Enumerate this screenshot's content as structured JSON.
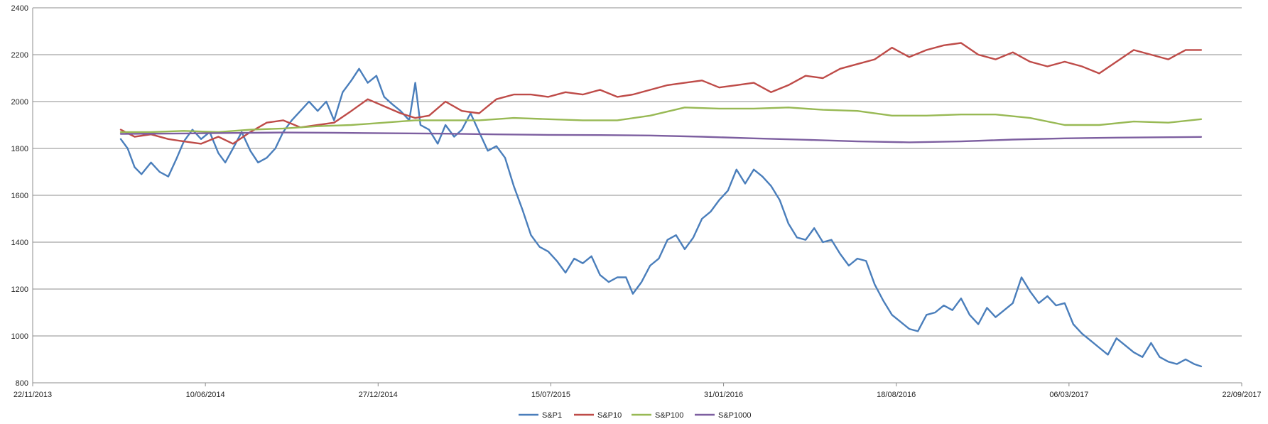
{
  "chart_data": {
    "type": "line",
    "title": "",
    "xlabel": "",
    "ylabel": "",
    "x_axis": {
      "type": "date",
      "range": [
        "2013-11-22",
        "2017-09-22"
      ],
      "ticks": [
        {
          "date": "2013-11-22",
          "label": "22/11/2013"
        },
        {
          "date": "2014-06-10",
          "label": "10/06/2014"
        },
        {
          "date": "2014-12-27",
          "label": "27/12/2014"
        },
        {
          "date": "2015-07-15",
          "label": "15/07/2015"
        },
        {
          "date": "2016-01-31",
          "label": "31/01/2016"
        },
        {
          "date": "2016-08-18",
          "label": "18/08/2016"
        },
        {
          "date": "2017-03-06",
          "label": "06/03/2017"
        },
        {
          "date": "2017-09-22",
          "label": "22/09/2017"
        }
      ]
    },
    "y_axis": {
      "range": [
        800,
        2400
      ],
      "ticks": [
        800,
        1000,
        1200,
        1400,
        1600,
        1800,
        2000,
        2200,
        2400
      ]
    },
    "grid": "horizontal",
    "legend_position": "bottom",
    "series": [
      {
        "name": "S&P1",
        "color": "#4a7ebb",
        "points": [
          [
            "2014-03-04",
            1840
          ],
          [
            "2014-03-12",
            1800
          ],
          [
            "2014-03-20",
            1720
          ],
          [
            "2014-03-28",
            1690
          ],
          [
            "2014-04-08",
            1740
          ],
          [
            "2014-04-18",
            1700
          ],
          [
            "2014-04-28",
            1680
          ],
          [
            "2014-05-08",
            1760
          ],
          [
            "2014-05-16",
            1830
          ],
          [
            "2014-05-26",
            1880
          ],
          [
            "2014-06-05",
            1840
          ],
          [
            "2014-06-15",
            1870
          ],
          [
            "2014-06-25",
            1780
          ],
          [
            "2014-07-03",
            1740
          ],
          [
            "2014-07-12",
            1800
          ],
          [
            "2014-07-22",
            1870
          ],
          [
            "2014-08-01",
            1790
          ],
          [
            "2014-08-10",
            1740
          ],
          [
            "2014-08-20",
            1760
          ],
          [
            "2014-08-30",
            1800
          ],
          [
            "2014-09-08",
            1870
          ],
          [
            "2014-09-18",
            1920
          ],
          [
            "2014-09-28",
            1960
          ],
          [
            "2014-10-08",
            2000
          ],
          [
            "2014-10-18",
            1960
          ],
          [
            "2014-10-28",
            2000
          ],
          [
            "2014-11-06",
            1920
          ],
          [
            "2014-11-16",
            2040
          ],
          [
            "2014-11-26",
            2090
          ],
          [
            "2014-12-05",
            2140
          ],
          [
            "2014-12-15",
            2080
          ],
          [
            "2014-12-25",
            2110
          ],
          [
            "2015-01-03",
            2020
          ],
          [
            "2015-01-12",
            1990
          ],
          [
            "2015-01-22",
            1960
          ],
          [
            "2015-02-01",
            1920
          ],
          [
            "2015-02-08",
            2080
          ],
          [
            "2015-02-14",
            1900
          ],
          [
            "2015-02-24",
            1880
          ],
          [
            "2015-03-06",
            1820
          ],
          [
            "2015-03-15",
            1900
          ],
          [
            "2015-03-25",
            1850
          ],
          [
            "2015-04-03",
            1880
          ],
          [
            "2015-04-13",
            1950
          ],
          [
            "2015-04-23",
            1870
          ],
          [
            "2015-05-03",
            1790
          ],
          [
            "2015-05-13",
            1810
          ],
          [
            "2015-05-23",
            1760
          ],
          [
            "2015-06-02",
            1640
          ],
          [
            "2015-06-12",
            1540
          ],
          [
            "2015-06-22",
            1430
          ],
          [
            "2015-07-02",
            1380
          ],
          [
            "2015-07-12",
            1360
          ],
          [
            "2015-07-22",
            1320
          ],
          [
            "2015-08-01",
            1270
          ],
          [
            "2015-08-11",
            1330
          ],
          [
            "2015-08-21",
            1310
          ],
          [
            "2015-08-31",
            1340
          ],
          [
            "2015-09-10",
            1260
          ],
          [
            "2015-09-20",
            1230
          ],
          [
            "2015-09-30",
            1250
          ],
          [
            "2015-10-10",
            1250
          ],
          [
            "2015-10-18",
            1180
          ],
          [
            "2015-10-28",
            1230
          ],
          [
            "2015-11-07",
            1300
          ],
          [
            "2015-11-17",
            1330
          ],
          [
            "2015-11-27",
            1410
          ],
          [
            "2015-12-07",
            1430
          ],
          [
            "2015-12-17",
            1370
          ],
          [
            "2015-12-27",
            1420
          ],
          [
            "2016-01-06",
            1500
          ],
          [
            "2016-01-16",
            1530
          ],
          [
            "2016-01-26",
            1580
          ],
          [
            "2016-02-05",
            1620
          ],
          [
            "2016-02-15",
            1710
          ],
          [
            "2016-02-25",
            1650
          ],
          [
            "2016-03-06",
            1710
          ],
          [
            "2016-03-16",
            1680
          ],
          [
            "2016-03-26",
            1640
          ],
          [
            "2016-04-05",
            1580
          ],
          [
            "2016-04-15",
            1480
          ],
          [
            "2016-04-25",
            1420
          ],
          [
            "2016-05-05",
            1410
          ],
          [
            "2016-05-15",
            1460
          ],
          [
            "2016-05-25",
            1400
          ],
          [
            "2016-06-04",
            1410
          ],
          [
            "2016-06-14",
            1350
          ],
          [
            "2016-06-24",
            1300
          ],
          [
            "2016-07-04",
            1330
          ],
          [
            "2016-07-14",
            1320
          ],
          [
            "2016-07-24",
            1220
          ],
          [
            "2016-08-03",
            1150
          ],
          [
            "2016-08-13",
            1090
          ],
          [
            "2016-08-23",
            1060
          ],
          [
            "2016-09-02",
            1030
          ],
          [
            "2016-09-12",
            1020
          ],
          [
            "2016-09-22",
            1090
          ],
          [
            "2016-10-02",
            1100
          ],
          [
            "2016-10-12",
            1130
          ],
          [
            "2016-10-22",
            1110
          ],
          [
            "2016-11-01",
            1160
          ],
          [
            "2016-11-11",
            1090
          ],
          [
            "2016-11-21",
            1050
          ],
          [
            "2016-12-01",
            1120
          ],
          [
            "2016-12-11",
            1080
          ],
          [
            "2016-12-21",
            1110
          ],
          [
            "2016-12-31",
            1140
          ],
          [
            "2017-01-10",
            1250
          ],
          [
            "2017-01-20",
            1190
          ],
          [
            "2017-01-30",
            1140
          ],
          [
            "2017-02-09",
            1170
          ],
          [
            "2017-02-19",
            1130
          ],
          [
            "2017-03-01",
            1140
          ],
          [
            "2017-03-11",
            1050
          ],
          [
            "2017-03-21",
            1010
          ],
          [
            "2017-03-31",
            980
          ],
          [
            "2017-04-10",
            950
          ],
          [
            "2017-04-20",
            920
          ],
          [
            "2017-04-30",
            990
          ],
          [
            "2017-05-10",
            960
          ],
          [
            "2017-05-20",
            930
          ],
          [
            "2017-05-30",
            910
          ],
          [
            "2017-06-09",
            970
          ],
          [
            "2017-06-19",
            910
          ],
          [
            "2017-06-29",
            890
          ],
          [
            "2017-07-09",
            880
          ],
          [
            "2017-07-19",
            900
          ],
          [
            "2017-07-29",
            880
          ],
          [
            "2017-08-06",
            870
          ]
        ]
      },
      {
        "name": "S&P10",
        "color": "#be4b48",
        "points": [
          [
            "2014-03-04",
            1880
          ],
          [
            "2014-03-20",
            1850
          ],
          [
            "2014-04-08",
            1860
          ],
          [
            "2014-04-28",
            1840
          ],
          [
            "2014-05-16",
            1830
          ],
          [
            "2014-06-05",
            1820
          ],
          [
            "2014-06-25",
            1850
          ],
          [
            "2014-07-12",
            1820
          ],
          [
            "2014-08-01",
            1870
          ],
          [
            "2014-08-20",
            1910
          ],
          [
            "2014-09-08",
            1920
          ],
          [
            "2014-09-28",
            1890
          ],
          [
            "2014-10-18",
            1900
          ],
          [
            "2014-11-06",
            1910
          ],
          [
            "2014-11-26",
            1960
          ],
          [
            "2014-12-15",
            2010
          ],
          [
            "2015-01-03",
            1980
          ],
          [
            "2015-01-22",
            1950
          ],
          [
            "2015-02-08",
            1930
          ],
          [
            "2015-02-24",
            1940
          ],
          [
            "2015-03-15",
            2000
          ],
          [
            "2015-04-03",
            1960
          ],
          [
            "2015-04-23",
            1950
          ],
          [
            "2015-05-13",
            2010
          ],
          [
            "2015-06-02",
            2030
          ],
          [
            "2015-06-22",
            2030
          ],
          [
            "2015-07-12",
            2020
          ],
          [
            "2015-08-01",
            2040
          ],
          [
            "2015-08-21",
            2030
          ],
          [
            "2015-09-10",
            2050
          ],
          [
            "2015-09-30",
            2020
          ],
          [
            "2015-10-18",
            2030
          ],
          [
            "2015-11-07",
            2050
          ],
          [
            "2015-11-27",
            2070
          ],
          [
            "2015-12-17",
            2080
          ],
          [
            "2016-01-06",
            2090
          ],
          [
            "2016-01-26",
            2060
          ],
          [
            "2016-02-15",
            2070
          ],
          [
            "2016-03-06",
            2080
          ],
          [
            "2016-03-26",
            2040
          ],
          [
            "2016-04-15",
            2070
          ],
          [
            "2016-05-05",
            2110
          ],
          [
            "2016-05-25",
            2100
          ],
          [
            "2016-06-14",
            2140
          ],
          [
            "2016-07-04",
            2160
          ],
          [
            "2016-07-24",
            2180
          ],
          [
            "2016-08-13",
            2230
          ],
          [
            "2016-09-02",
            2190
          ],
          [
            "2016-09-22",
            2220
          ],
          [
            "2016-10-12",
            2240
          ],
          [
            "2016-11-01",
            2250
          ],
          [
            "2016-11-21",
            2200
          ],
          [
            "2016-12-11",
            2180
          ],
          [
            "2016-12-31",
            2210
          ],
          [
            "2017-01-20",
            2170
          ],
          [
            "2017-02-09",
            2150
          ],
          [
            "2017-03-01",
            2170
          ],
          [
            "2017-03-21",
            2150
          ],
          [
            "2017-04-10",
            2120
          ],
          [
            "2017-04-30",
            2170
          ],
          [
            "2017-05-20",
            2220
          ],
          [
            "2017-06-09",
            2200
          ],
          [
            "2017-06-29",
            2180
          ],
          [
            "2017-07-19",
            2220
          ],
          [
            "2017-08-06",
            2220
          ]
        ]
      },
      {
        "name": "S&P100",
        "color": "#98b954",
        "points": [
          [
            "2014-03-04",
            1870
          ],
          [
            "2014-04-08",
            1870
          ],
          [
            "2014-05-16",
            1875
          ],
          [
            "2014-06-25",
            1870
          ],
          [
            "2014-08-01",
            1880
          ],
          [
            "2014-09-08",
            1885
          ],
          [
            "2014-10-18",
            1895
          ],
          [
            "2014-11-26",
            1900
          ],
          [
            "2015-01-03",
            1910
          ],
          [
            "2015-02-08",
            1920
          ],
          [
            "2015-03-15",
            1920
          ],
          [
            "2015-04-23",
            1920
          ],
          [
            "2015-06-02",
            1930
          ],
          [
            "2015-07-12",
            1925
          ],
          [
            "2015-08-21",
            1920
          ],
          [
            "2015-09-30",
            1920
          ],
          [
            "2015-11-07",
            1940
          ],
          [
            "2015-12-17",
            1975
          ],
          [
            "2016-01-26",
            1970
          ],
          [
            "2016-03-06",
            1970
          ],
          [
            "2016-04-15",
            1975
          ],
          [
            "2016-05-25",
            1965
          ],
          [
            "2016-07-04",
            1960
          ],
          [
            "2016-08-13",
            1940
          ],
          [
            "2016-09-22",
            1940
          ],
          [
            "2016-11-01",
            1945
          ],
          [
            "2016-12-11",
            1945
          ],
          [
            "2017-01-20",
            1930
          ],
          [
            "2017-03-01",
            1900
          ],
          [
            "2017-04-10",
            1900
          ],
          [
            "2017-05-20",
            1915
          ],
          [
            "2017-06-29",
            1910
          ],
          [
            "2017-08-06",
            1925
          ]
        ]
      },
      {
        "name": "S&P1000",
        "color": "#7d5fa0",
        "points": [
          [
            "2014-03-04",
            1862
          ],
          [
            "2014-05-16",
            1864
          ],
          [
            "2014-07-12",
            1866
          ],
          [
            "2014-09-08",
            1868
          ],
          [
            "2014-11-06",
            1867
          ],
          [
            "2015-01-03",
            1865
          ],
          [
            "2015-03-15",
            1863
          ],
          [
            "2015-05-13",
            1860
          ],
          [
            "2015-07-12",
            1858
          ],
          [
            "2015-09-10",
            1857
          ],
          [
            "2015-11-07",
            1855
          ],
          [
            "2016-01-06",
            1850
          ],
          [
            "2016-03-06",
            1843
          ],
          [
            "2016-05-05",
            1837
          ],
          [
            "2016-07-04",
            1830
          ],
          [
            "2016-09-02",
            1826
          ],
          [
            "2016-11-01",
            1830
          ],
          [
            "2016-12-31",
            1838
          ],
          [
            "2017-03-01",
            1843
          ],
          [
            "2017-05-01",
            1846
          ],
          [
            "2017-07-01",
            1848
          ],
          [
            "2017-08-06",
            1849
          ]
        ]
      }
    ]
  }
}
